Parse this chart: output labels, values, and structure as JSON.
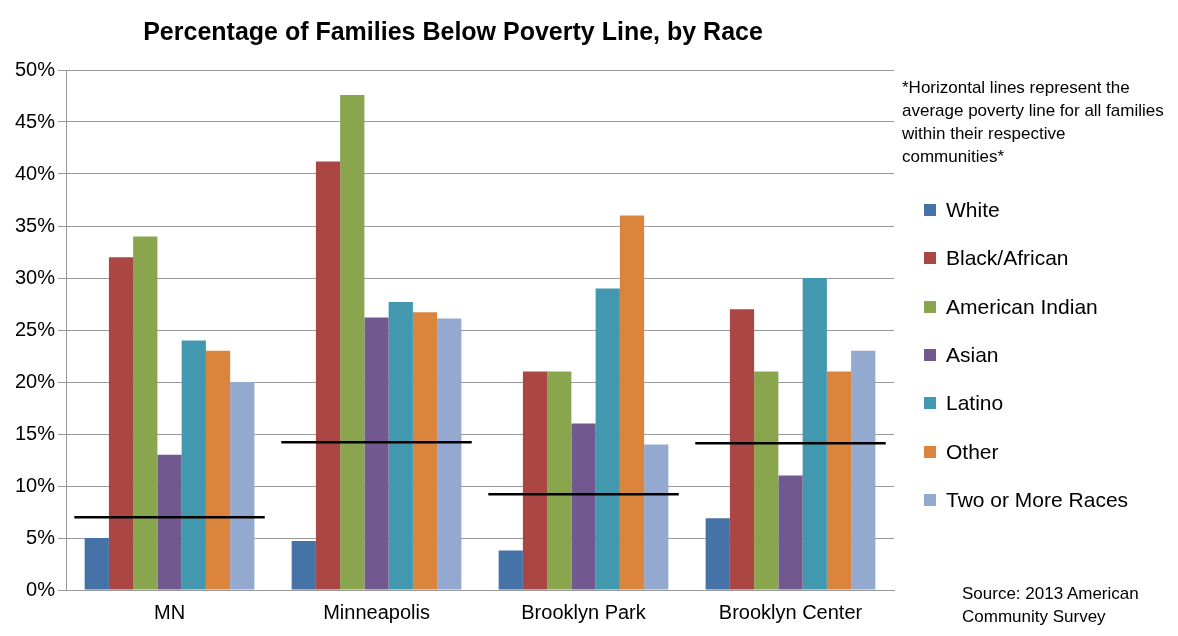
{
  "chart_data": {
    "type": "bar",
    "title": "Percentage of Families Below Poverty Line, by Race",
    "categories": [
      "MN",
      "Minneapolis",
      "Brooklyn Park",
      "Brooklyn Center"
    ],
    "series": [
      {
        "name": "White",
        "color": "#4572a7",
        "values": [
          5,
          4.7,
          3.8,
          6.9
        ]
      },
      {
        "name": "Black/African",
        "color": "#aa4643",
        "values": [
          32,
          41.2,
          21,
          27
        ]
      },
      {
        "name": "American Indian",
        "color": "#89a54e",
        "values": [
          34,
          47.6,
          21,
          21
        ]
      },
      {
        "name": "Asian",
        "color": "#71588f",
        "values": [
          13,
          26.2,
          16,
          11
        ]
      },
      {
        "name": "Latino",
        "color": "#4198af",
        "values": [
          24,
          27.7,
          29,
          30
        ]
      },
      {
        "name": "Other",
        "color": "#db843d",
        "values": [
          23,
          26.7,
          36,
          21
        ]
      },
      {
        "name": "Two or More Races",
        "color": "#93a9cf",
        "values": [
          20,
          26.1,
          14,
          23
        ]
      }
    ],
    "ylim": [
      0,
      50
    ],
    "yticks": [
      {
        "value": 0,
        "label": "0%"
      },
      {
        "value": 5,
        "label": "5%"
      },
      {
        "value": 10,
        "label": "10%"
      },
      {
        "value": 15,
        "label": "15%"
      },
      {
        "value": 20,
        "label": "20%"
      },
      {
        "value": 25,
        "label": "25%"
      },
      {
        "value": 30,
        "label": "30%"
      },
      {
        "value": 35,
        "label": "35%"
      },
      {
        "value": 40,
        "label": "40%"
      },
      {
        "value": 45,
        "label": "45%"
      },
      {
        "value": 50,
        "label": "50%"
      }
    ],
    "grid": "y",
    "legend": "right",
    "ref_lines": [
      {
        "axis": "y",
        "value": 7,
        "color": "#000000"
      },
      {
        "axis": "y",
        "value": 14.2,
        "color": "#000000"
      },
      {
        "axis": "y",
        "value": 9.2,
        "color": "#000000"
      },
      {
        "axis": "y",
        "value": 14.1,
        "color": "#000000"
      }
    ],
    "annotations": [
      "*Horizontal lines represent the average poverty line for all families within their respective communities*",
      "Source: 2013 American Community Survey"
    ]
  }
}
